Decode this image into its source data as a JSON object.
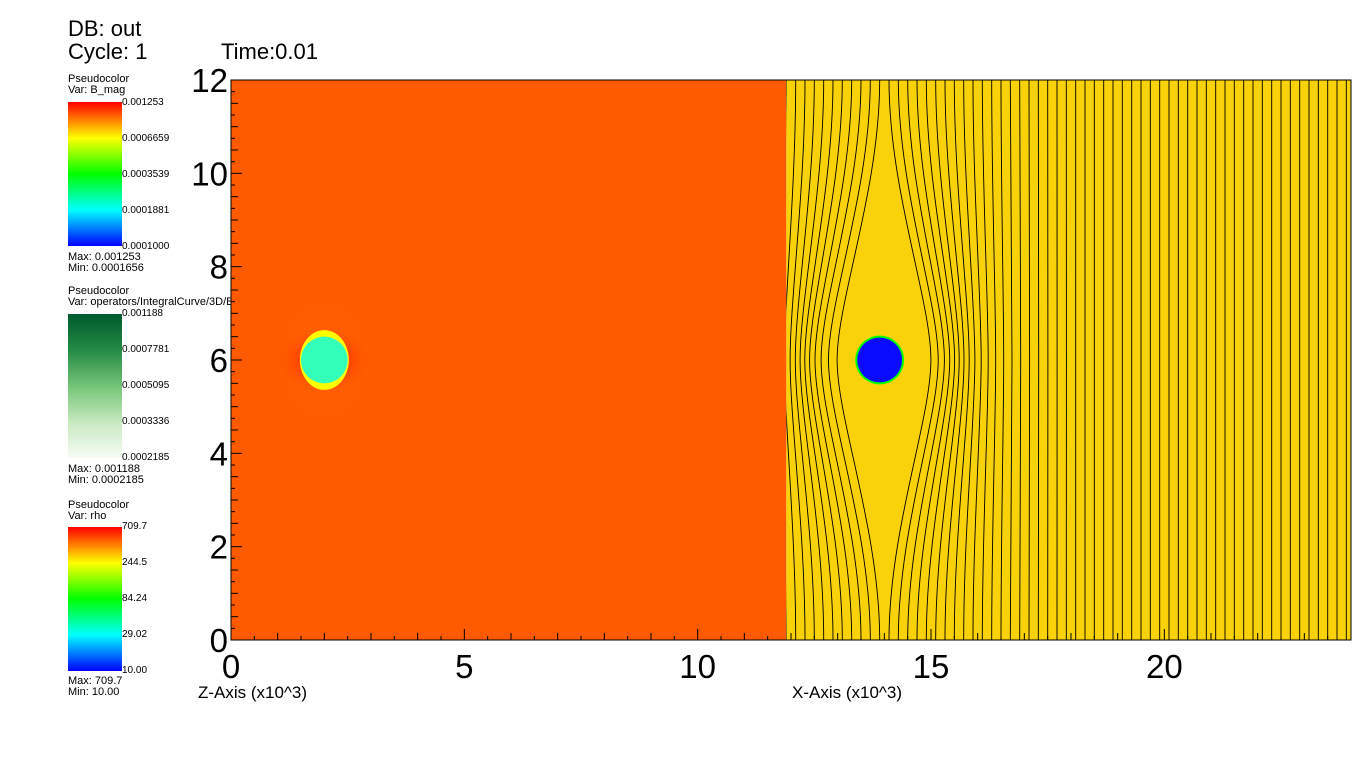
{
  "header": {
    "db": "DB: out",
    "cycle": "Cycle: 1",
    "time": "Time:0.01"
  },
  "legends": [
    {
      "type": "Pseudocolor",
      "var": "Var: B_mag",
      "ticks": [
        "0.001253",
        "0.0006659",
        "0.0003539",
        "0.0001881",
        "0.0001000"
      ],
      "max": "Max:  0.001253",
      "min": "Min:  0.0001656",
      "colormap": [
        "#ff0000",
        "#ffff00",
        "#00ff00",
        "#00ffff",
        "#0000ff"
      ]
    },
    {
      "type": "Pseudocolor",
      "var": "Var: operators/IntegralCurve/3D/B",
      "ticks": [
        "0.001188",
        "0.0007781",
        "0.0005095",
        "0.0003336",
        "0.0002185"
      ],
      "max": "Max:  0.001188",
      "min": "Min:  0.0002185",
      "colormap": [
        "#005a2d",
        "#238b45",
        "#74c476",
        "#c7e9c0",
        "#f7fcf5"
      ]
    },
    {
      "type": "Pseudocolor",
      "var": "Var: rho",
      "ticks": [
        "709.7",
        "244.5",
        "84.24",
        "29.02",
        "10.00"
      ],
      "max": "Max:  709.7",
      "min": "Min:  10.00",
      "colormap": [
        "#ff0000",
        "#ffff00",
        "#00ff00",
        "#00ffff",
        "#0000ff"
      ]
    }
  ],
  "chart_data": {
    "type": "heatmap",
    "x_tick_labels": [
      "0",
      "5",
      "10",
      "15",
      "20"
    ],
    "y_tick_labels": [
      "0",
      "2",
      "4",
      "6",
      "8",
      "10",
      "12"
    ],
    "x_ticks": [
      0,
      5,
      10,
      15,
      20
    ],
    "y_ticks": [
      0,
      2,
      4,
      6,
      8,
      10,
      12
    ],
    "xlim": [
      0,
      24
    ],
    "ylim": [
      0,
      12
    ],
    "x_label_left": "Z-Axis (x10^3)",
    "x_label_right": "X-Axis (x10^3)",
    "panels": [
      {
        "var": "B_mag",
        "x_range": [
          0,
          11.9
        ],
        "background": "#ff5a00",
        "circle": {
          "cx": 2.0,
          "cy": 6.0,
          "r": 0.5,
          "fill": "#33ffbb",
          "halo": "#ffff00"
        }
      },
      {
        "var": "rho",
        "x_range": [
          11.9,
          24
        ],
        "background": "#fad20a",
        "line_spacing": 0.2,
        "line_color": "#000000",
        "circle": {
          "cx": 13.9,
          "cy": 6.0,
          "r": 0.48,
          "fill": "#0a0aff",
          "edge": "#00ff00"
        }
      }
    ]
  }
}
